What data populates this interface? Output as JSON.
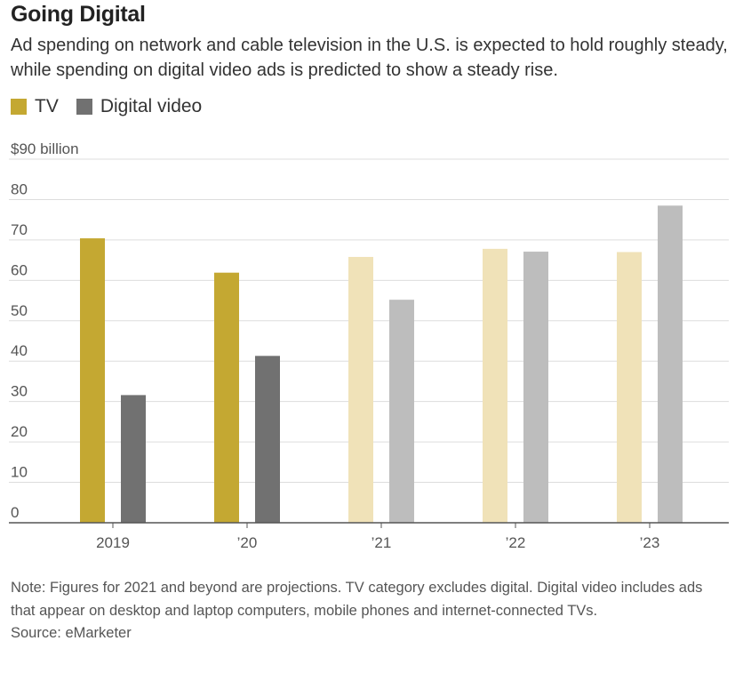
{
  "header": {
    "title": "Going Digital",
    "subtitle": "Ad spending on network and cable television in the U.S. is expected to hold roughly steady, while spending on digital video ads is predicted to show a steady rise."
  },
  "legend": {
    "items": [
      {
        "label": "TV",
        "color": "#c4a832"
      },
      {
        "label": "Digital video",
        "color": "#717171"
      }
    ]
  },
  "colors": {
    "tv_actual": "#c4a832",
    "tv_projected": "#f0e2b8",
    "digital_actual": "#717171",
    "digital_projected": "#bdbdbd",
    "grid": "#dddddd",
    "axis": "#555555",
    "tick_text": "#555555"
  },
  "chart_data": {
    "type": "bar",
    "categories": [
      "2019",
      "’20",
      "’21",
      "’22",
      "’23"
    ],
    "projected": [
      false,
      false,
      true,
      true,
      true
    ],
    "series": [
      {
        "name": "TV",
        "values": [
          70.4,
          61.9,
          65.8,
          67.8,
          67.0
        ]
      },
      {
        "name": "Digital video",
        "values": [
          31.6,
          41.3,
          55.2,
          67.1,
          78.5
        ]
      }
    ],
    "yticks": [
      0,
      10,
      20,
      30,
      40,
      50,
      60,
      70,
      80,
      90
    ],
    "ytick_labels": [
      "0",
      "10",
      "20",
      "30",
      "40",
      "50",
      "60",
      "70",
      "80",
      "$90 billion"
    ],
    "ylim": [
      0,
      90
    ],
    "grid": true,
    "legend_position": "top-left"
  },
  "footer": {
    "note": "Note: Figures for 2021 and beyond are projections. TV category excludes digital. Digital video includes ads that appear on desktop and laptop computers, mobile phones and internet-connected TVs.",
    "source": "Source: eMarketer"
  }
}
